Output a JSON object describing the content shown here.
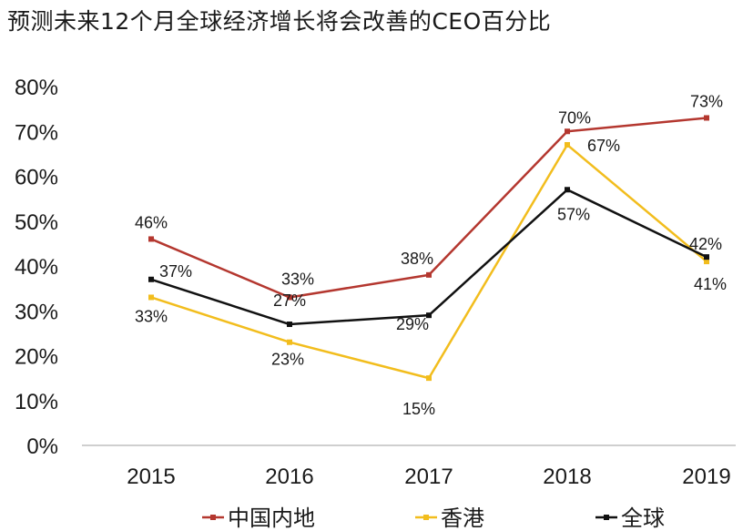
{
  "chart_data": {
    "type": "line",
    "title": "预测未来12个月全球经济增长将会改善的CEO百分比",
    "xlabel": "",
    "ylabel": "",
    "categories": [
      "2015",
      "2016",
      "2017",
      "2018",
      "2019"
    ],
    "ylim": [
      0,
      80
    ],
    "yticks": [
      "0%",
      "10%",
      "20%",
      "30%",
      "40%",
      "50%",
      "60%",
      "70%",
      "80%"
    ],
    "grid": false,
    "legend_position": "bottom",
    "series": [
      {
        "name": "中国内地",
        "color": "#b4372f",
        "values": [
          46,
          33,
          38,
          70,
          73
        ],
        "labels": [
          "46%",
          "33%",
          "38%",
          "70%",
          "73%"
        ]
      },
      {
        "name": "香港",
        "color": "#f2bd1d",
        "values": [
          33,
          23,
          15,
          67,
          41
        ],
        "labels": [
          "33%",
          "23%",
          "15%",
          "67%",
          "41%"
        ]
      },
      {
        "name": "全球",
        "color": "#111111",
        "values": [
          37,
          27,
          29,
          57,
          42
        ],
        "labels": [
          "37%",
          "27%",
          "29%",
          "57%",
          "42%"
        ]
      }
    ]
  }
}
